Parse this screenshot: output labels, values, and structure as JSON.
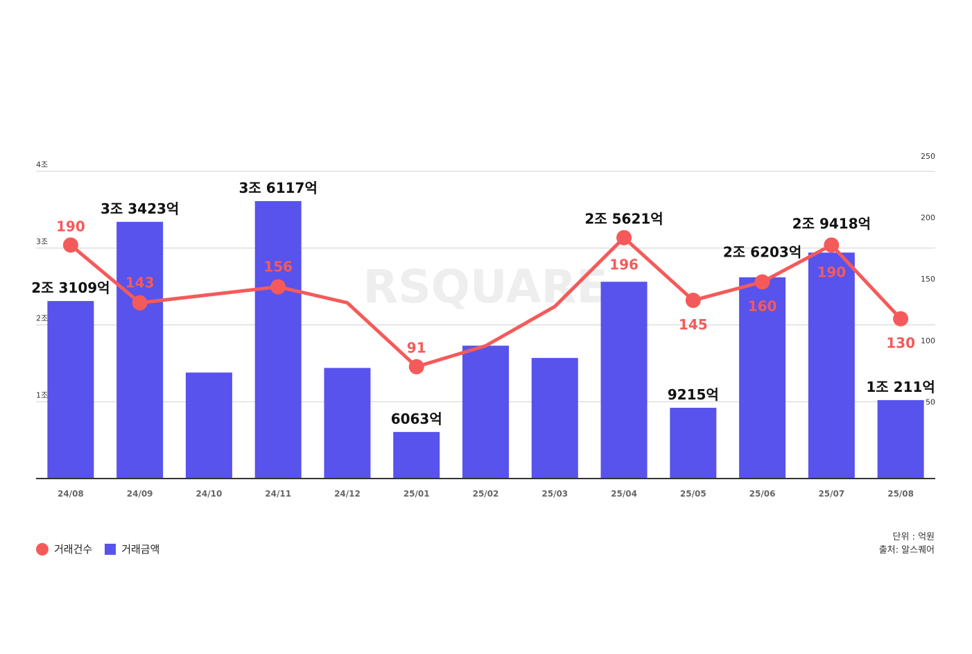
{
  "chart_data": {
    "type": "bar",
    "watermark": "RSQUARE",
    "categories": [
      "24/08",
      "24/09",
      "24/10",
      "24/11",
      "24/12",
      "25/01",
      "25/02",
      "25/03",
      "25/04",
      "25/05",
      "25/06",
      "25/07",
      "25/08"
    ],
    "series": [
      {
        "name": "거래금액",
        "type": "bar",
        "axis": "left",
        "color": "#5753ec",
        "values": [
          23109,
          33423,
          13800,
          36117,
          14400,
          6063,
          17300,
          15700,
          25621,
          9215,
          26203,
          29418,
          10211
        ],
        "labels": [
          "2조 3109억",
          "3조 3423억",
          "",
          "3조 6117억",
          "",
          "6063억",
          "",
          "",
          "2조 5621억",
          "9215억",
          "2조 6203억",
          "2조 9418억",
          "1조 211억"
        ]
      },
      {
        "name": "거래건수",
        "type": "line",
        "axis": "right",
        "color": "#f55a5a",
        "values": [
          190,
          143,
          null,
          156,
          143,
          91,
          108,
          140,
          196,
          145,
          160,
          190,
          130
        ],
        "labels": [
          "190",
          "143",
          "",
          "156",
          "",
          "91",
          "",
          "",
          "196",
          "145",
          "160",
          "190",
          "130"
        ]
      }
    ],
    "left_axis": {
      "ylim": [
        0,
        40000
      ],
      "ticks": [
        10000,
        20000,
        30000,
        40000
      ],
      "tick_labels": [
        "1조",
        "2조",
        "3조",
        "4조"
      ]
    },
    "right_axis": {
      "ylim": [
        0,
        250
      ],
      "ticks": [
        50,
        100,
        150,
        200,
        250
      ],
      "tick_labels": [
        "50",
        "100",
        "150",
        "200",
        "250"
      ]
    }
  },
  "legend": {
    "count_label": "거래건수",
    "amount_label": "거래금액",
    "count_color": "#f55a5a",
    "amount_color": "#5753ec"
  },
  "notes": {
    "unit": "단위 : 억원",
    "source": "출처: 알스퀘어"
  }
}
